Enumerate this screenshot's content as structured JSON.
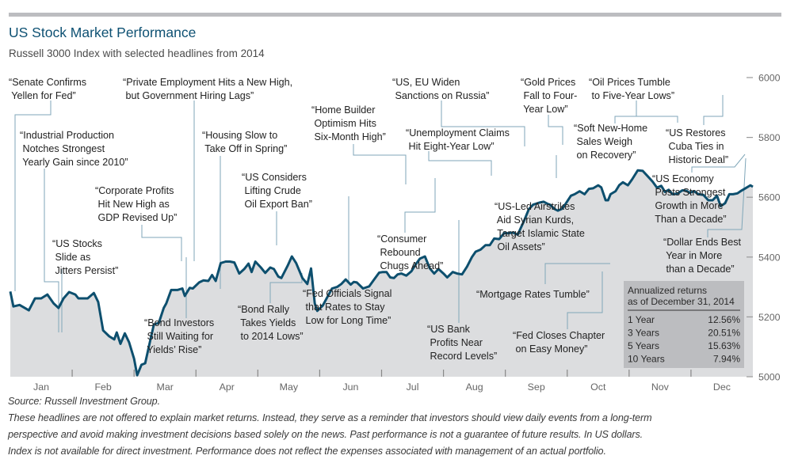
{
  "header": {
    "title": "US Stock Market Performance",
    "subtitle": "Russell 3000 Index with selected headlines from 2014"
  },
  "footer": {
    "source": "Source: Russell Investment Group.",
    "lines": [
      "These headlines are not offered to explain market returns. Instead, they serve as a reminder that investors should view daily events from a long-term",
      "perspective and avoid making investment decisions based solely on the news. Past performance is not a guarantee of future results. In US dollars.",
      "Index is not available for direct investment. Performance does not reflect the expenses associated with management of an actual portfolio."
    ]
  },
  "colors": {
    "title": "#0e5173",
    "line": "#0d4f6e",
    "area": "#dcdddf",
    "leader": "#7fa6b8",
    "returns_box": "#bcbdc0",
    "topbar": "#bcbdc0"
  },
  "returns_box": {
    "heading": [
      "Annualized returns",
      "as of December 31, 2014"
    ],
    "rows": [
      {
        "label": "1 Year",
        "value": "12.56%"
      },
      {
        "label": "3 Years",
        "value": "20.51%"
      },
      {
        "label": "5 Years",
        "value": "15.63%"
      },
      {
        "label": "10 Years",
        "value": "7.94%"
      }
    ]
  },
  "chart_data": {
    "type": "area",
    "title": "US Stock Market Performance",
    "subtitle": "Russell 3000 Index with selected headlines from 2014",
    "xlabel": "",
    "ylabel": "",
    "x_unit": "month (0 = Jan 1, 12 = Dec 31)",
    "xlim": [
      0,
      12
    ],
    "ylim": [
      5000,
      6000
    ],
    "yticks": [
      5000,
      5200,
      5400,
      5600,
      5800,
      6000
    ],
    "y_axis_side": "right",
    "xtick_labels": [
      "Jan",
      "Feb",
      "Mar",
      "Apr",
      "May",
      "Jun",
      "Jul",
      "Aug",
      "Sep",
      "Oct",
      "Nov",
      "Dec"
    ],
    "grid": false,
    "series": [
      {
        "name": "Russell 3000 Index",
        "points": [
          [
            0.0,
            5285
          ],
          [
            0.05,
            5235
          ],
          [
            0.15,
            5240
          ],
          [
            0.3,
            5222
          ],
          [
            0.4,
            5262
          ],
          [
            0.5,
            5262
          ],
          [
            0.6,
            5275
          ],
          [
            0.7,
            5245
          ],
          [
            0.78,
            5230
          ],
          [
            0.86,
            5262
          ],
          [
            0.95,
            5283
          ],
          [
            1.05,
            5275
          ],
          [
            1.1,
            5262
          ],
          [
            1.25,
            5262
          ],
          [
            1.35,
            5280
          ],
          [
            1.42,
            5250
          ],
          [
            1.5,
            5155
          ],
          [
            1.6,
            5135
          ],
          [
            1.68,
            5125
          ],
          [
            1.72,
            5148
          ],
          [
            1.78,
            5110
          ],
          [
            1.85,
            5145
          ],
          [
            1.92,
            5115
          ],
          [
            2.0,
            5060
          ],
          [
            2.05,
            5005
          ],
          [
            2.12,
            5040
          ],
          [
            2.18,
            5045
          ],
          [
            2.26,
            5120
          ],
          [
            2.32,
            5175
          ],
          [
            2.4,
            5180
          ],
          [
            2.48,
            5230
          ],
          [
            2.52,
            5245
          ],
          [
            2.6,
            5290
          ],
          [
            2.7,
            5290
          ],
          [
            2.78,
            5295
          ],
          [
            2.82,
            5270
          ],
          [
            2.9,
            5297
          ],
          [
            2.95,
            5295
          ],
          [
            3.05,
            5315
          ],
          [
            3.12,
            5322
          ],
          [
            3.2,
            5320
          ],
          [
            3.26,
            5340
          ],
          [
            3.32,
            5320
          ],
          [
            3.4,
            5380
          ],
          [
            3.48,
            5385
          ],
          [
            3.55,
            5385
          ],
          [
            3.62,
            5382
          ],
          [
            3.7,
            5345
          ],
          [
            3.78,
            5360
          ],
          [
            3.85,
            5378
          ],
          [
            3.9,
            5350
          ],
          [
            3.96,
            5385
          ],
          [
            4.05,
            5365
          ],
          [
            4.12,
            5347
          ],
          [
            4.2,
            5365
          ],
          [
            4.26,
            5360
          ],
          [
            4.33,
            5335
          ],
          [
            4.38,
            5330
          ],
          [
            4.48,
            5370
          ],
          [
            4.55,
            5402
          ],
          [
            4.62,
            5380
          ],
          [
            4.72,
            5330
          ],
          [
            4.8,
            5310
          ],
          [
            4.86,
            5362
          ],
          [
            4.92,
            5245
          ],
          [
            4.96,
            5220
          ],
          [
            5.05,
            5238
          ],
          [
            5.12,
            5265
          ],
          [
            5.2,
            5295
          ],
          [
            5.28,
            5300
          ],
          [
            5.35,
            5310
          ],
          [
            5.42,
            5325
          ],
          [
            5.5,
            5308
          ],
          [
            5.55,
            5317
          ],
          [
            5.6,
            5315
          ],
          [
            5.7,
            5295
          ],
          [
            5.8,
            5302
          ],
          [
            5.88,
            5325
          ],
          [
            5.96,
            5348
          ],
          [
            6.02,
            5350
          ],
          [
            6.08,
            5350
          ],
          [
            6.14,
            5332
          ],
          [
            6.2,
            5330
          ],
          [
            6.26,
            5342
          ],
          [
            6.32,
            5345
          ],
          [
            6.4,
            5338
          ],
          [
            6.48,
            5352
          ],
          [
            6.55,
            5375
          ],
          [
            6.62,
            5395
          ],
          [
            6.7,
            5402
          ],
          [
            6.78,
            5362
          ],
          [
            6.85,
            5345
          ],
          [
            6.92,
            5360
          ],
          [
            7.0,
            5345
          ],
          [
            7.06,
            5332
          ],
          [
            7.15,
            5350
          ],
          [
            7.22,
            5345
          ],
          [
            7.3,
            5342
          ],
          [
            7.38,
            5368
          ],
          [
            7.46,
            5400
          ],
          [
            7.52,
            5418
          ],
          [
            7.6,
            5425
          ],
          [
            7.68,
            5440
          ],
          [
            7.75,
            5440
          ],
          [
            7.82,
            5462
          ],
          [
            7.9,
            5460
          ],
          [
            7.98,
            5480
          ],
          [
            8.05,
            5480
          ],
          [
            8.12,
            5482
          ],
          [
            8.2,
            5475
          ],
          [
            8.3,
            5520
          ],
          [
            8.38,
            5560
          ],
          [
            8.45,
            5575
          ],
          [
            8.55,
            5582
          ],
          [
            8.62,
            5585
          ],
          [
            8.68,
            5578
          ],
          [
            8.72,
            5575
          ],
          [
            8.8,
            5560
          ],
          [
            8.85,
            5555
          ],
          [
            8.92,
            5562
          ],
          [
            8.98,
            5580
          ],
          [
            9.06,
            5605
          ],
          [
            9.12,
            5610
          ],
          [
            9.2,
            5620
          ],
          [
            9.28,
            5610
          ],
          [
            9.35,
            5628
          ],
          [
            9.42,
            5630
          ],
          [
            9.5,
            5640
          ],
          [
            9.55,
            5633
          ],
          [
            9.62,
            5590
          ],
          [
            9.66,
            5590
          ],
          [
            9.7,
            5610
          ],
          [
            9.78,
            5620
          ],
          [
            9.84,
            5640
          ],
          [
            9.9,
            5650
          ],
          [
            9.98,
            5640
          ],
          [
            10.05,
            5660
          ],
          [
            10.14,
            5690
          ],
          [
            10.22,
            5688
          ],
          [
            10.3,
            5670
          ],
          [
            10.38,
            5652
          ],
          [
            10.45,
            5632
          ],
          [
            10.52,
            5638
          ],
          [
            10.58,
            5618
          ],
          [
            10.64,
            5625
          ],
          [
            10.7,
            5610
          ],
          [
            10.78,
            5612
          ],
          [
            10.86,
            5623
          ],
          [
            10.92,
            5622
          ],
          [
            10.98,
            5615
          ],
          [
            11.05,
            5620
          ],
          [
            11.12,
            5610
          ],
          [
            11.2,
            5608
          ],
          [
            11.28,
            5590
          ],
          [
            11.35,
            5590
          ],
          [
            11.42,
            5605
          ],
          [
            11.48,
            5570
          ],
          [
            11.55,
            5580
          ],
          [
            11.62,
            5610
          ],
          [
            11.68,
            5610
          ],
          [
            11.75,
            5613
          ],
          [
            11.8,
            5620
          ],
          [
            11.88,
            5630
          ],
          [
            11.96,
            5640
          ],
          [
            12.0,
            5635
          ]
        ]
      }
    ],
    "annotations": [
      {
        "text": [
          "“Senate Confirms",
          " Yellen for Fed”"
        ]
      },
      {
        "text": [
          "“Industrial Production",
          " Notches Strongest",
          " Yearly Gain since 2010”"
        ]
      },
      {
        "text": [
          "“Private Employment Hits a New High,",
          " but Government Hiring Lags”"
        ]
      },
      {
        "text": [
          "“Corporate Profits",
          " Hit New High as",
          " GDP Revised Up”"
        ]
      },
      {
        "text": [
          "“US Stocks",
          " Slide as",
          " Jitters Persist”"
        ]
      },
      {
        "text": [
          "“Housing Slow to",
          " Take Off in Spring”"
        ]
      },
      {
        "text": [
          "“US Considers",
          " Lifting Crude",
          " Oil Export Ban”"
        ]
      },
      {
        "text": [
          "“Bond Investors",
          " Still Waiting for",
          " Yields’ Rise”"
        ]
      },
      {
        "text": [
          "“Bond Rally",
          " Takes Yields",
          " to 2014 Lows”"
        ]
      },
      {
        "text": [
          "“Home Builder",
          " Optimism Hits",
          " Six-Month High”"
        ]
      },
      {
        "text": [
          "“Fed Officials Signal",
          " that Rates to Stay",
          " Low for Long Time”"
        ]
      },
      {
        "text": [
          "“US, EU Widen",
          " Sanctions on Russia”"
        ]
      },
      {
        "text": [
          "“Unemployment Claims",
          " Hit Eight-Year Low”"
        ]
      },
      {
        "text": [
          "“Consumer",
          " Rebound",
          " Chugs Ahead”"
        ]
      },
      {
        "text": [
          "“US Bank",
          " Profits Near",
          " Record Levels”"
        ]
      },
      {
        "text": [
          "“Gold Prices",
          " Fall to Four-",
          " Year Low”"
        ]
      },
      {
        "text": [
          "“Oil Prices Tumble",
          " to Five-Year Lows”"
        ]
      },
      {
        "text": [
          "“US-Led Airstrikes",
          " Aid Syrian Kurds,",
          " Target Islamic State",
          " Oil Assets”"
        ]
      },
      {
        "text": [
          "“Soft New-Home",
          " Sales Weigh",
          " on Recovery”"
        ]
      },
      {
        "text": [
          "“Mortgage Rates Tumble”"
        ]
      },
      {
        "text": [
          "“Fed Closes Chapter",
          " on Easy Money”"
        ]
      },
      {
        "text": [
          "“US Restores",
          " Cuba Ties in",
          " Historic Deal”"
        ]
      },
      {
        "text": [
          "“US Economy",
          " Posts Strongest",
          " Growth in More",
          " Than a Decade”"
        ]
      },
      {
        "text": [
          "“Dollar Ends Best",
          " Year in More",
          " than a Decade”"
        ]
      }
    ]
  }
}
